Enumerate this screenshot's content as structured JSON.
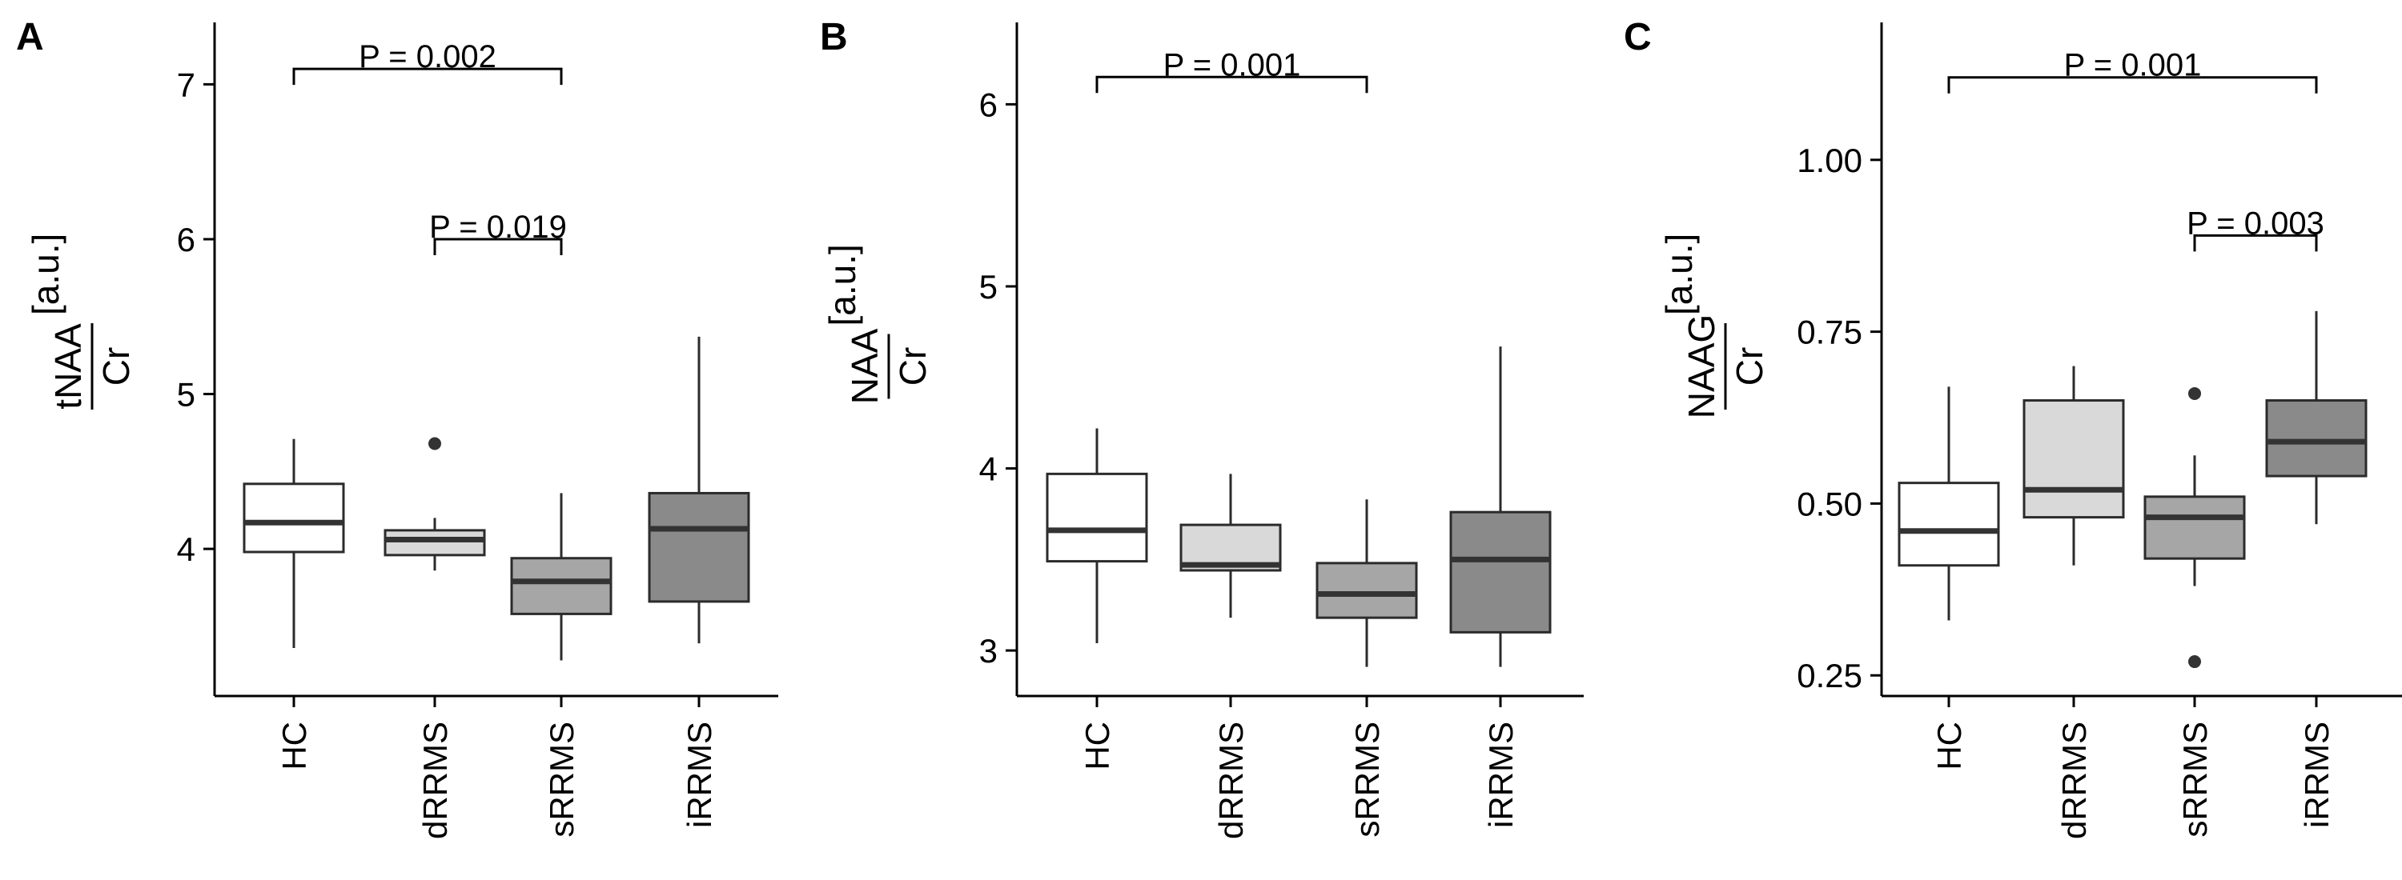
{
  "chart_data": [
    {
      "type": "box",
      "panel": "A",
      "ylabel": {
        "numerator": "tNAA",
        "denominator": "Cr",
        "unit": "[a.u.]"
      },
      "ylim": [
        3.05,
        7.4
      ],
      "yticks": [
        4,
        5,
        6,
        7
      ],
      "ytick_labels": [
        "4",
        "5",
        "6",
        "7"
      ],
      "categories": [
        "HC",
        "dRRMS",
        "sRRMS",
        "iRRMS"
      ],
      "boxes": [
        {
          "group": "HC",
          "whisker_low": 3.36,
          "q1": 3.98,
          "median": 4.17,
          "q3": 4.42,
          "whisker_high": 4.71,
          "outliers": []
        },
        {
          "group": "dRRMS",
          "whisker_low": 3.86,
          "q1": 3.96,
          "median": 4.06,
          "q3": 4.12,
          "whisker_high": 4.2,
          "outliers": [
            4.68
          ]
        },
        {
          "group": "sRRMS",
          "whisker_low": 3.28,
          "q1": 3.58,
          "median": 3.79,
          "q3": 3.94,
          "whisker_high": 4.36,
          "outliers": []
        },
        {
          "group": "iRRMS",
          "whisker_low": 3.39,
          "q1": 3.66,
          "median": 4.13,
          "q3": 4.36,
          "whisker_high": 5.37,
          "outliers": []
        }
      ],
      "brackets": [
        {
          "from": "HC",
          "to": "sRRMS",
          "y": 7.1,
          "label": "P = 0.002"
        },
        {
          "from": "dRRMS",
          "to": "sRRMS",
          "y": 6.0,
          "label": "P = 0.019"
        }
      ]
    },
    {
      "type": "box",
      "panel": "B",
      "ylabel": {
        "numerator": "NAA",
        "denominator": "Cr",
        "unit": "[a.u.]"
      },
      "ylim": [
        2.75,
        6.45
      ],
      "yticks": [
        3,
        4,
        5,
        6
      ],
      "ytick_labels": [
        "3",
        "4",
        "5",
        "6"
      ],
      "categories": [
        "HC",
        "dRRMS",
        "sRRMS",
        "iRRMS"
      ],
      "boxes": [
        {
          "group": "HC",
          "whisker_low": 3.04,
          "q1": 3.49,
          "median": 3.66,
          "q3": 3.97,
          "whisker_high": 4.22,
          "outliers": []
        },
        {
          "group": "dRRMS",
          "whisker_low": 3.18,
          "q1": 3.44,
          "median": 3.47,
          "q3": 3.69,
          "whisker_high": 3.97,
          "outliers": []
        },
        {
          "group": "sRRMS",
          "whisker_low": 2.91,
          "q1": 3.18,
          "median": 3.31,
          "q3": 3.48,
          "whisker_high": 3.83,
          "outliers": []
        },
        {
          "group": "iRRMS",
          "whisker_low": 2.91,
          "q1": 3.1,
          "median": 3.5,
          "q3": 3.76,
          "whisker_high": 4.67,
          "outliers": []
        }
      ],
      "brackets": [
        {
          "from": "HC",
          "to": "sRRMS",
          "y": 6.15,
          "label": "P = 0.001"
        }
      ]
    },
    {
      "type": "box",
      "panel": "C",
      "ylabel": {
        "numerator": "NAAG",
        "denominator": "Cr",
        "unit": "[a.u.]"
      },
      "ylim": [
        0.22,
        1.2
      ],
      "yticks": [
        0.25,
        0.5,
        0.75,
        1.0
      ],
      "ytick_labels": [
        "0.25",
        "0.50",
        "0.75",
        "1.00"
      ],
      "categories": [
        "HC",
        "dRRMS",
        "sRRMS",
        "iRRMS"
      ],
      "boxes": [
        {
          "group": "HC",
          "whisker_low": 0.33,
          "q1": 0.41,
          "median": 0.46,
          "q3": 0.53,
          "whisker_high": 0.67,
          "outliers": []
        },
        {
          "group": "dRRMS",
          "whisker_low": 0.41,
          "q1": 0.48,
          "median": 0.52,
          "q3": 0.65,
          "whisker_high": 0.7,
          "outliers": []
        },
        {
          "group": "sRRMS",
          "whisker_low": 0.38,
          "q1": 0.42,
          "median": 0.48,
          "q3": 0.51,
          "whisker_high": 0.57,
          "outliers": [
            0.66,
            0.27
          ]
        },
        {
          "group": "iRRMS",
          "whisker_low": 0.47,
          "q1": 0.54,
          "median": 0.59,
          "q3": 0.65,
          "whisker_high": 0.78,
          "outliers": []
        }
      ],
      "brackets": [
        {
          "from": "HC",
          "to": "iRRMS",
          "y": 1.12,
          "label": "P = 0.001"
        },
        {
          "from": "sRRMS",
          "to": "iRRMS",
          "y": 0.89,
          "label": "P = 0.003"
        }
      ]
    }
  ],
  "style": {
    "box_fill": {
      "HC": "#ffffff",
      "dRRMS": "#d9d9d9",
      "sRRMS": "#a6a6a6",
      "iRRMS": "#8a8a8a"
    },
    "line_color": "#2b2b2b",
    "median_color": "#333333",
    "outlier_color": "#333333",
    "text_color": "#000000"
  }
}
